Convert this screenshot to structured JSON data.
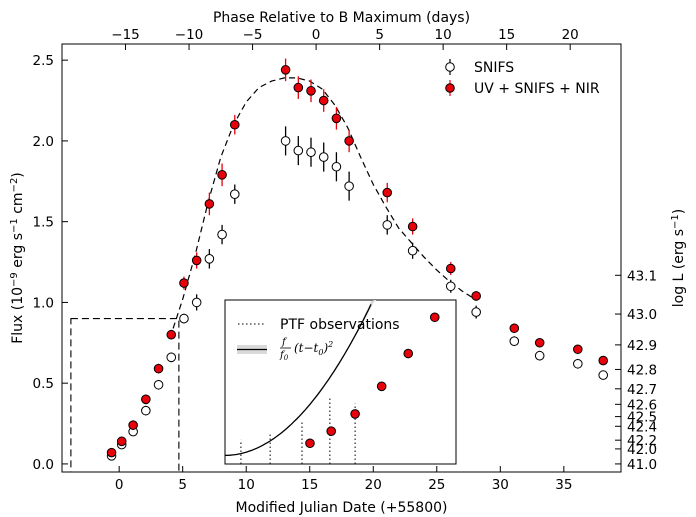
{
  "chart_data": {
    "type": "scatter",
    "xlabel": "Modified Julian Date (+55800)",
    "ylabel": "Flux (10",
    "ylabel_exp1": "−9",
    "ylabel_mid": " erg s",
    "ylabel_exp2": "−1",
    "ylabel_mid2": " cm",
    "ylabel_exp3": "−2",
    "ylabel_end": ")",
    "top_xlabel": "Phase Relative to B Maximum (days)",
    "right_ylabel": "log L (erg s",
    "right_ylabel_exp": "−1",
    "right_ylabel_end": ")",
    "xlim": [
      -4.5,
      39.5
    ],
    "ylim": [
      -0.05,
      2.6
    ],
    "x_ticks": [
      0,
      5,
      10,
      15,
      20,
      25,
      30,
      35
    ],
    "y_ticks": [
      0.0,
      0.5,
      1.0,
      1.5,
      2.0,
      2.5
    ],
    "y_tick_labels": [
      "0.0",
      "0.5",
      "1.0",
      "1.5",
      "2.0",
      "2.5"
    ],
    "top_ticks": [
      -15,
      -10,
      -5,
      0,
      5,
      10,
      15,
      20
    ],
    "top_tick_labels": [
      "−15",
      "−10",
      "−5",
      "0",
      "5",
      "10",
      "15",
      "20"
    ],
    "b_max_mjd_offset": 15.5,
    "right_ticks": [
      41.0,
      42.0,
      42.2,
      42.4,
      42.5,
      42.6,
      42.7,
      42.8,
      42.9,
      43.0,
      43.1
    ],
    "right_tick_labels": [
      "41.0",
      "42.0",
      "42.2",
      "42.4",
      "42.5",
      "42.6",
      "42.7",
      "42.8",
      "42.9",
      "43.0",
      "43.1"
    ],
    "right_tick_flux": [
      0.0,
      0.093,
      0.147,
      0.233,
      0.293,
      0.369,
      0.465,
      0.585,
      0.737,
      0.928,
      1.168
    ],
    "series": [
      {
        "name": "SNIFS",
        "marker": "open-circle",
        "x": [
          -0.6,
          0.2,
          1.1,
          2.1,
          3.1,
          4.1,
          5.1,
          6.1,
          7.1,
          8.1,
          9.1,
          13.1,
          14.1,
          15.1,
          16.1,
          17.1,
          18.1,
          21.1,
          23.1,
          26.1,
          28.1,
          31.1,
          33.1,
          36.1,
          38.1
        ],
        "y": [
          0.05,
          0.12,
          0.2,
          0.33,
          0.49,
          0.66,
          0.9,
          1.0,
          1.27,
          1.42,
          1.67,
          2.0,
          1.94,
          1.93,
          1.9,
          1.84,
          1.72,
          1.48,
          1.32,
          1.1,
          0.94,
          0.76,
          0.67,
          0.62,
          0.55
        ],
        "yerr": [
          0.02,
          0.02,
          0.02,
          0.03,
          0.03,
          0.03,
          0.03,
          0.05,
          0.06,
          0.06,
          0.06,
          0.09,
          0.09,
          0.09,
          0.09,
          0.09,
          0.09,
          0.06,
          0.05,
          0.04,
          0.04,
          0.03,
          0.03,
          0.03,
          0.02
        ]
      },
      {
        "name": "UV + SNIFS + NIR",
        "marker": "filled-circle",
        "color": "#e8000b",
        "x": [
          -0.6,
          0.2,
          1.1,
          2.1,
          3.1,
          4.1,
          5.1,
          6.1,
          7.1,
          8.1,
          9.1,
          13.1,
          14.1,
          15.1,
          16.1,
          17.1,
          18.1,
          21.1,
          23.1,
          26.1,
          28.1,
          31.1,
          33.1,
          36.1,
          38.1
        ],
        "y": [
          0.07,
          0.14,
          0.24,
          0.4,
          0.59,
          0.8,
          1.12,
          1.26,
          1.61,
          1.79,
          2.1,
          2.44,
          2.33,
          2.31,
          2.25,
          2.14,
          2.0,
          1.68,
          1.47,
          1.21,
          1.04,
          0.84,
          0.75,
          0.71,
          0.64
        ],
        "yerr": [
          0.02,
          0.02,
          0.03,
          0.03,
          0.03,
          0.03,
          0.04,
          0.05,
          0.07,
          0.07,
          0.06,
          0.07,
          0.07,
          0.07,
          0.07,
          0.07,
          0.07,
          0.06,
          0.05,
          0.04,
          0.03,
          0.03,
          0.02,
          0.02,
          0.02
        ]
      }
    ],
    "model_curve": {
      "style": "dashed",
      "x": [
        4.0,
        5.0,
        6.0,
        7.0,
        8.0,
        9.0,
        10.0,
        11.0,
        12.0,
        13.0,
        14.0,
        15.0,
        16.0,
        17.0,
        18.0,
        19.0,
        20.0,
        21.0,
        22.0,
        23.0,
        24.0,
        25.0,
        26.0,
        27.0,
        28.0
      ],
      "y": [
        0.78,
        1.02,
        1.3,
        1.62,
        1.9,
        2.1,
        2.24,
        2.33,
        2.37,
        2.39,
        2.39,
        2.37,
        2.32,
        2.22,
        2.08,
        1.9,
        1.73,
        1.59,
        1.46,
        1.37,
        1.28,
        1.2,
        1.13,
        1.07,
        1.02
      ]
    },
    "dashed_box": {
      "x": [
        -3.8,
        4.7
      ],
      "y": [
        -0.05,
        0.9
      ]
    },
    "legend": {
      "position": "top-right",
      "entries": [
        "SNIFS",
        "UV + SNIFS + NIR"
      ]
    },
    "inset": {
      "legend_entries": [
        "PTF observations",
        "(t−t",
        "0",
        ")",
        "2"
      ],
      "legend_frac_top": "f",
      "legend_frac_bot": "f",
      "legend_frac_bot_sub": "0",
      "xlim": [
        -3.8,
        4.9
      ],
      "ylim": [
        -0.05,
        0.9
      ],
      "ptf_lines_x": [
        -3.2,
        -2.1,
        -0.9,
        0.15,
        1.1
      ],
      "ptf_lines_top": [
        0.09,
        0.12,
        0.2,
        0.33,
        0.3
      ],
      "points": {
        "x": [
          -0.6,
          0.2,
          1.1,
          2.1,
          3.1,
          4.1
        ],
        "y": [
          0.07,
          0.14,
          0.24,
          0.4,
          0.59,
          0.8
        ]
      },
      "fit_curve": {
        "t0": -3.8,
        "k": 0.0289
      }
    }
  }
}
